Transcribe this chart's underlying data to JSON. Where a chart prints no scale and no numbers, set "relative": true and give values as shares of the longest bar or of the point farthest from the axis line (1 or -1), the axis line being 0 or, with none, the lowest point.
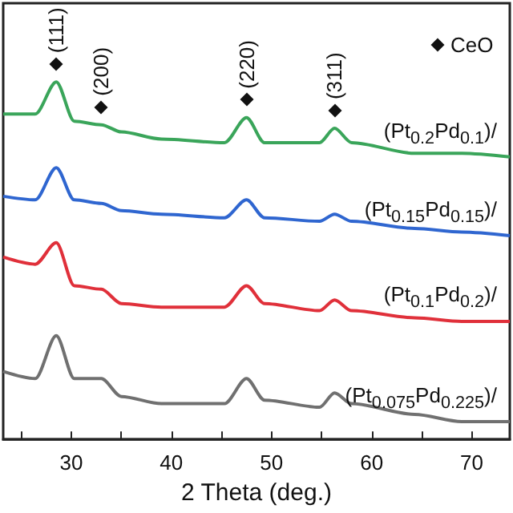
{
  "chart_data": {
    "type": "line",
    "relative": true,
    "xlabel": "2 Theta (deg.)",
    "x": [
      23.2,
      26.4,
      28.5,
      30.3,
      33.0,
      35.0,
      39.0,
      45.3,
      47.5,
      49.3,
      54.8,
      56.3,
      58.0,
      64.3,
      69.0,
      73.8
    ],
    "xlim": [
      23.2,
      73.8
    ],
    "xticks": [
      {
        "value": 25,
        "label": null
      },
      30,
      {
        "value": 35,
        "label": null
      },
      40,
      {
        "value": 45,
        "label": null
      },
      50,
      {
        "value": 55,
        "label": null
      },
      60,
      {
        "value": 65,
        "label": null
      },
      70
    ],
    "series": [
      {
        "name": "(Pt$_{0.2}$Pd$_{0.1}$)/",
        "color": "#3aa55a",
        "values": [
          0.91,
          0.91,
          1.0,
          0.89,
          0.88,
          0.86,
          0.84,
          0.83,
          0.9,
          0.83,
          0.83,
          0.87,
          0.83,
          0.8,
          0.8,
          0.79
        ]
      },
      {
        "name": "(Pt$_{0.15}$Pd$_{0.15}$)/",
        "color": "#2f66d0",
        "values": [
          0.68,
          0.67,
          0.76,
          0.67,
          0.66,
          0.64,
          0.63,
          0.62,
          0.67,
          0.62,
          0.61,
          0.63,
          0.61,
          0.59,
          0.58,
          0.57
        ]
      },
      {
        "name": "(Pt$_{0.1}$Pd$_{0.2}$)/",
        "color": "#e0303a",
        "values": [
          0.51,
          0.49,
          0.55,
          0.43,
          0.42,
          0.38,
          0.37,
          0.37,
          0.43,
          0.38,
          0.36,
          0.39,
          0.36,
          0.34,
          0.33,
          0.33
        ]
      },
      {
        "name": "(Pt$_{0.075}$Pd$_{0.225}$)/",
        "color": "#707070",
        "values": [
          0.19,
          0.17,
          0.29,
          0.17,
          0.17,
          0.12,
          0.1,
          0.1,
          0.17,
          0.11,
          0.09,
          0.13,
          0.1,
          0.07,
          0.05,
          0.05
        ]
      }
    ],
    "annotations": [
      {
        "text": "(111)",
        "x": 28.5,
        "y": 1.0
      },
      {
        "text": "(200)",
        "x": 33.0,
        "y": 0.88
      },
      {
        "text": "(220)",
        "x": 47.5,
        "y": 0.9
      },
      {
        "text": "(311)",
        "x": 56.3,
        "y": 0.87
      },
      "CeO"
    ],
    "grid": false,
    "legend": false,
    "tick_labels": "x"
  }
}
